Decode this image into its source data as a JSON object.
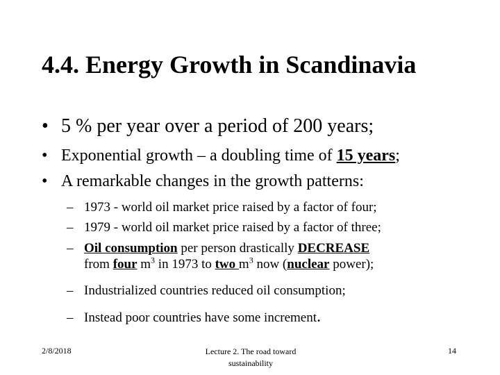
{
  "slide": {
    "title": "4.4. Energy Growth in Scandinavia",
    "bullets": [
      {
        "marker": "•",
        "text": "5 % per year over a period of 200 years;"
      },
      {
        "marker": "•",
        "pre": "Exponential growth – a doubling time of ",
        "emph": "15 years",
        "post": ";"
      },
      {
        "marker": "•",
        "text": "A remarkable changes in the growth patterns:"
      }
    ],
    "subitems": {
      "dash": "–",
      "item1": "1973 - world oil market price raised by a factor of four;",
      "item2": "1979 - world oil market price raised by a factor of three;",
      "item3": {
        "u1": "Oil consumption",
        "t1": " per person drastically ",
        "u2": "DECREASE ",
        "t2": "from ",
        "u3": "four",
        "t3": " m",
        "sup1": "3",
        "t4": " in 1973 to ",
        "u4": "two ",
        "t5": "m",
        "sup2": "3",
        "t6": "  now (",
        "u5": "nuclear",
        "t7": " power);"
      },
      "item4": "Industrialized countries reduced oil consumption;",
      "item5": "Instead poor countries have some increment",
      "item5_end": "."
    }
  },
  "footer": {
    "date": "2/8/2018",
    "center_line1": "Lecture 2. The road toward",
    "center_line2": "sustainability",
    "page": "14"
  }
}
